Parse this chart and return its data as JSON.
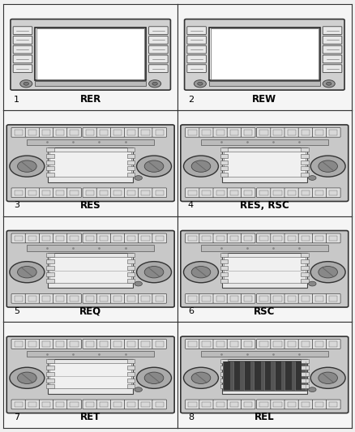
{
  "cells": [
    {
      "num": "1",
      "label": "RER",
      "type": "large_screen"
    },
    {
      "num": "2",
      "label": "REW",
      "type": "large_screen"
    },
    {
      "num": "3",
      "label": "RES",
      "type": "standard_full"
    },
    {
      "num": "4",
      "label": "RES, RSC",
      "type": "standard_compact"
    },
    {
      "num": "5",
      "label": "REQ",
      "type": "standard_wide"
    },
    {
      "num": "6",
      "label": "RSC",
      "type": "standard_wide2"
    },
    {
      "num": "7",
      "label": "RET",
      "type": "standard_ret"
    },
    {
      "num": "8",
      "label": "REL",
      "type": "standard_rel"
    }
  ],
  "bg_color": "#f5f5f5",
  "border_color": "#333333",
  "label_fontsize": 8.5,
  "num_fontsize": 8
}
